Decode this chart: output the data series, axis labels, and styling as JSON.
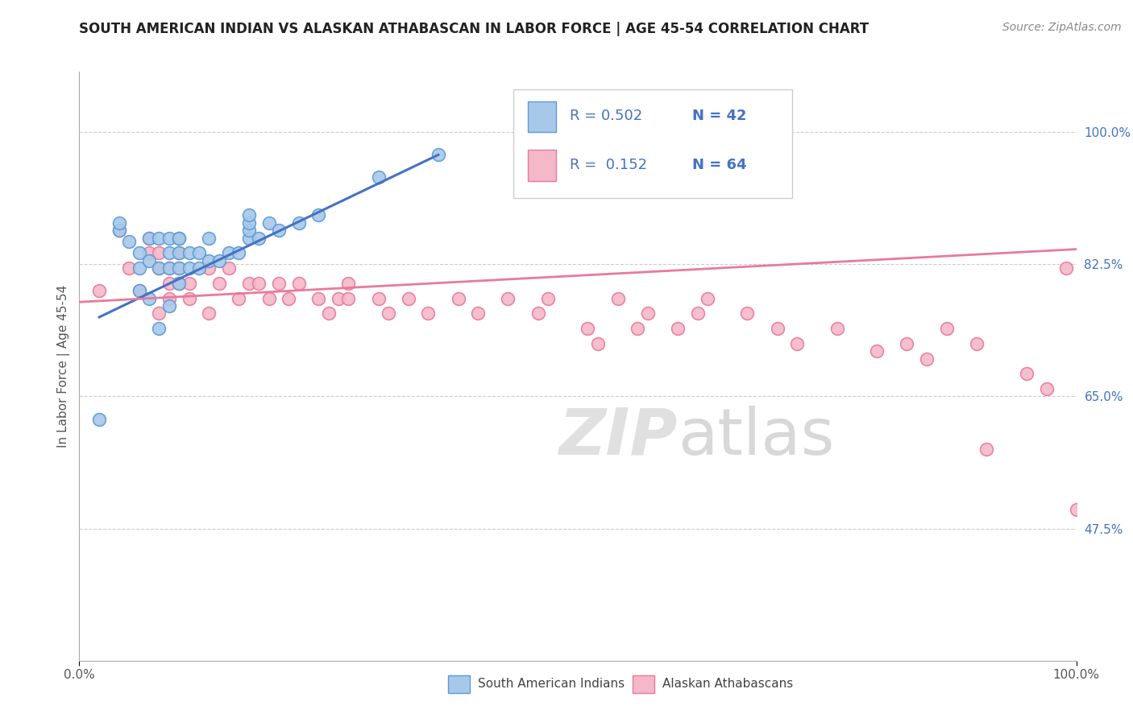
{
  "title": "SOUTH AMERICAN INDIAN VS ALASKAN ATHABASCAN IN LABOR FORCE | AGE 45-54 CORRELATION CHART",
  "source": "Source: ZipAtlas.com",
  "ylabel": "In Labor Force | Age 45-54",
  "ytick_labels": [
    "47.5%",
    "65.0%",
    "82.5%",
    "100.0%"
  ],
  "ytick_values": [
    0.475,
    0.65,
    0.825,
    1.0
  ],
  "xrange": [
    0.0,
    1.0
  ],
  "yrange": [
    0.3,
    1.08
  ],
  "legend_r_blue": "R = 0.502",
  "legend_n_blue": "N = 42",
  "legend_r_pink": "R =  0.152",
  "legend_n_pink": "N = 64",
  "blue_fill": "#a8c8ea",
  "pink_fill": "#f4b8c8",
  "blue_edge": "#5b9bd5",
  "pink_edge": "#e87a9a",
  "blue_line": "#4472c4",
  "pink_line": "#e87a9a",
  "legend_text_color": "#4472c4",
  "grid_color": "#cccccc",
  "title_color": "#222222",
  "source_color": "#888888",
  "ylabel_color": "#555555",
  "tick_color": "#555555",
  "watermark_color": "#e0e0e0",
  "blue_scatter_x": [
    0.02,
    0.04,
    0.04,
    0.05,
    0.06,
    0.06,
    0.06,
    0.07,
    0.07,
    0.07,
    0.08,
    0.08,
    0.08,
    0.09,
    0.09,
    0.09,
    0.09,
    0.1,
    0.1,
    0.1,
    0.1,
    0.1,
    0.11,
    0.11,
    0.12,
    0.12,
    0.13,
    0.13,
    0.14,
    0.15,
    0.16,
    0.17,
    0.17,
    0.17,
    0.17,
    0.18,
    0.19,
    0.2,
    0.22,
    0.24,
    0.3,
    0.36
  ],
  "blue_scatter_y": [
    0.62,
    0.87,
    0.88,
    0.855,
    0.79,
    0.82,
    0.84,
    0.78,
    0.83,
    0.86,
    0.74,
    0.82,
    0.86,
    0.77,
    0.82,
    0.84,
    0.86,
    0.8,
    0.82,
    0.84,
    0.86,
    0.86,
    0.82,
    0.84,
    0.82,
    0.84,
    0.83,
    0.86,
    0.83,
    0.84,
    0.84,
    0.86,
    0.87,
    0.88,
    0.89,
    0.86,
    0.88,
    0.87,
    0.88,
    0.89,
    0.94,
    0.97
  ],
  "pink_scatter_x": [
    0.02,
    0.04,
    0.05,
    0.06,
    0.07,
    0.07,
    0.08,
    0.08,
    0.08,
    0.09,
    0.09,
    0.09,
    0.1,
    0.1,
    0.1,
    0.11,
    0.11,
    0.13,
    0.13,
    0.14,
    0.15,
    0.16,
    0.17,
    0.18,
    0.19,
    0.2,
    0.21,
    0.22,
    0.24,
    0.25,
    0.26,
    0.27,
    0.27,
    0.3,
    0.31,
    0.33,
    0.35,
    0.38,
    0.4,
    0.43,
    0.46,
    0.47,
    0.51,
    0.52,
    0.54,
    0.56,
    0.57,
    0.6,
    0.62,
    0.63,
    0.67,
    0.7,
    0.72,
    0.76,
    0.8,
    0.83,
    0.85,
    0.87,
    0.9,
    0.91,
    0.95,
    0.97,
    0.99,
    1.0
  ],
  "pink_scatter_y": [
    0.79,
    0.87,
    0.82,
    0.79,
    0.84,
    0.86,
    0.76,
    0.82,
    0.84,
    0.78,
    0.8,
    0.82,
    0.8,
    0.82,
    0.84,
    0.78,
    0.8,
    0.76,
    0.82,
    0.8,
    0.82,
    0.78,
    0.8,
    0.8,
    0.78,
    0.8,
    0.78,
    0.8,
    0.78,
    0.76,
    0.78,
    0.78,
    0.8,
    0.78,
    0.76,
    0.78,
    0.76,
    0.78,
    0.76,
    0.78,
    0.76,
    0.78,
    0.74,
    0.72,
    0.78,
    0.74,
    0.76,
    0.74,
    0.76,
    0.78,
    0.76,
    0.74,
    0.72,
    0.74,
    0.71,
    0.72,
    0.7,
    0.74,
    0.72,
    0.58,
    0.68,
    0.66,
    0.82,
    0.5
  ],
  "blue_trend_x": [
    0.02,
    0.36
  ],
  "blue_trend_y": [
    0.755,
    0.97
  ],
  "pink_trend_x": [
    0.0,
    1.0
  ],
  "pink_trend_y": [
    0.775,
    0.845
  ],
  "bottom_legend_labels": [
    "South American Indians",
    "Alaskan Athabascans"
  ]
}
